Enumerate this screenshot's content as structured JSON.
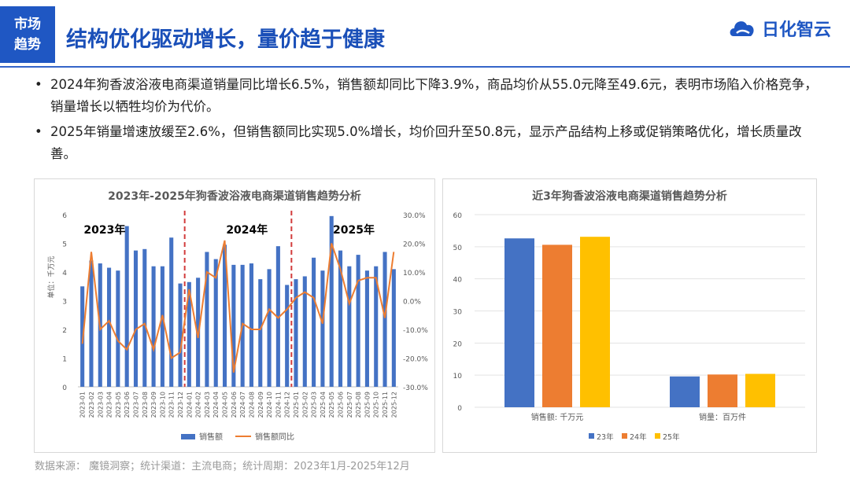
{
  "header": {
    "tag_line1": "市场",
    "tag_line2": "趋势",
    "title": "结构优化驱动增长，量价趋于健康",
    "logo_text": "日化智云"
  },
  "bullets": [
    "2024年狗香波浴液电商渠道销量同比增长6.5%，销售额却同比下降3.9%，商品均价从55.0元降至49.6元，表明市场陷入价格竞争，销量增长以牺牲均价为代价。",
    "2025年销量增速放缓至2.6%，但销售额同比实现5.0%增长，均价回升至50.8元，显示产品结构上移或促销策略优化，增长质量改善。"
  ],
  "source": "数据来源： 魔镜洞察；统计渠道：主流电商；统计周期：2023年1月-2025年12月",
  "colors": {
    "blue": "#4472c4",
    "orange": "#ed7d31",
    "yellow": "#ffc000",
    "red_dash": "#d23c3c",
    "brand": "#1f57c3"
  },
  "chart_data": [
    {
      "type": "bar",
      "title": "2023年-2025年狗香波浴液电商渠道销售趋势分析",
      "ylabel": "单位：千万元",
      "ylim": [
        0,
        6
      ],
      "y2lim": [
        -0.3,
        0.3
      ],
      "y_ticks": [
        "0",
        "1",
        "2",
        "3",
        "4",
        "5",
        "6"
      ],
      "y2_ticks": [
        "-30.0%",
        "-20.0%",
        "-10.0%",
        "0.0%",
        "10.0%",
        "20.0%",
        "30.0%"
      ],
      "year_labels": [
        "2023年",
        "2024年",
        "2025年"
      ],
      "categories": [
        "2023-01",
        "2023-02",
        "2023-03",
        "2023-04",
        "2023-05",
        "2023-06",
        "2023-07",
        "2023-08",
        "2023-09",
        "2023-10",
        "2023-11",
        "2023-12",
        "2024-01",
        "2024-02",
        "2024-03",
        "2024-04",
        "2024-05",
        "2024-06",
        "2024-07",
        "2024-08",
        "2024-09",
        "2024-10",
        "2024-11",
        "2024-12",
        "2025-01",
        "2025-02",
        "2025-03",
        "2025-04",
        "2025-05",
        "2025-06",
        "2025-07",
        "2025-08",
        "2025-09",
        "2025-10",
        "2025-11",
        "2025-12"
      ],
      "series": [
        {
          "name": "销售额",
          "kind": "bar",
          "values": [
            3.5,
            4.4,
            4.3,
            4.15,
            4.05,
            5.6,
            4.75,
            4.8,
            4.2,
            4.2,
            5.2,
            3.6,
            3.65,
            3.8,
            4.7,
            4.45,
            4.95,
            4.25,
            4.25,
            4.3,
            3.75,
            4.1,
            4.9,
            3.55,
            3.75,
            3.85,
            4.5,
            4.05,
            5.95,
            4.75,
            4.2,
            4.6,
            4.05,
            4.2,
            4.7,
            4.1
          ]
        },
        {
          "name": "销售额同比",
          "kind": "line",
          "axis": "right",
          "values": [
            -0.15,
            0.17,
            -0.1,
            -0.07,
            -0.14,
            -0.17,
            -0.1,
            -0.08,
            -0.17,
            -0.05,
            -0.2,
            -0.18,
            0.04,
            -0.13,
            0.1,
            0.08,
            0.21,
            -0.25,
            -0.08,
            -0.1,
            -0.1,
            -0.03,
            -0.06,
            -0.03,
            0.01,
            0.03,
            0.01,
            -0.08,
            0.2,
            0.11,
            -0.01,
            0.07,
            0.08,
            0.08,
            -0.06,
            0.17
          ]
        }
      ]
    },
    {
      "type": "bar",
      "title": "近3年狗香波浴液电商渠道销售趋势分析",
      "ylim": [
        0,
        60
      ],
      "y_ticks": [
        "0",
        "10",
        "20",
        "30",
        "40",
        "50",
        "60"
      ],
      "categories": [
        "销售额: 千万元",
        "销量：百万件"
      ],
      "series": [
        {
          "name": "23年",
          "values": [
            52.6,
            9.6
          ]
        },
        {
          "name": "24年",
          "values": [
            50.6,
            10.2
          ]
        },
        {
          "name": "25年",
          "values": [
            53.1,
            10.4
          ]
        }
      ]
    }
  ]
}
